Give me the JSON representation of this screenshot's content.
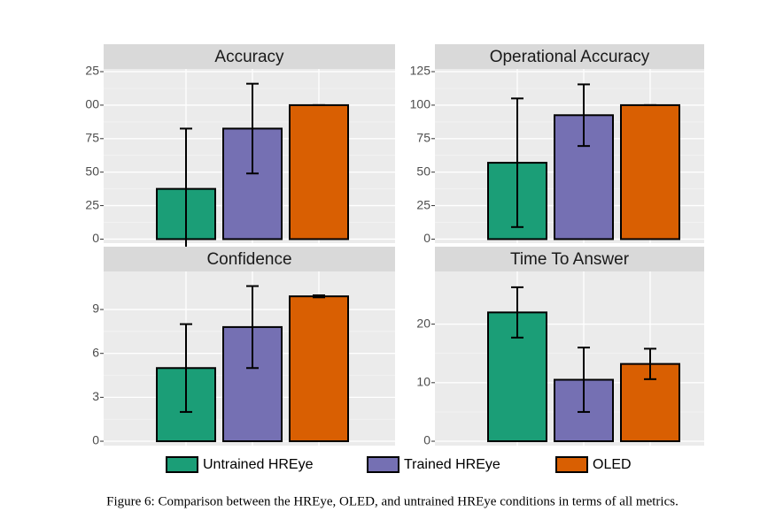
{
  "chart_data": [
    {
      "type": "bar",
      "title": "Accuracy",
      "values": [
        37.5,
        82.5,
        100
      ],
      "errors": [
        45,
        33.5,
        0
      ],
      "ylim": [
        -3,
        127
      ],
      "yticks": [
        0,
        25,
        50,
        75,
        {
          "value": 100,
          "label": "00"
        },
        {
          "value": 125,
          "label": "25"
        }
      ],
      "grid": true
    },
    {
      "type": "bar",
      "title": "Operational Accuracy",
      "values": [
        57,
        92.5,
        100
      ],
      "errors": [
        48,
        23,
        0
      ],
      "ylim": [
        -3,
        127
      ],
      "yticks": [
        0,
        25,
        50,
        75,
        100,
        125
      ],
      "grid": true
    },
    {
      "type": "bar",
      "title": "Confidence",
      "values": [
        5,
        7.8,
        9.9
      ],
      "errors": [
        3,
        2.8,
        0.07
      ],
      "ylim": [
        -0.3,
        11.6
      ],
      "yticks": [
        0,
        3,
        6,
        9
      ],
      "grid": true
    },
    {
      "type": "bar",
      "title": "Time To Answer",
      "values": [
        22,
        10.5,
        13.2
      ],
      "errors": [
        4.3,
        5.5,
        2.6
      ],
      "ylim": [
        -0.75,
        29
      ],
      "yticks": [
        0,
        10,
        20
      ],
      "grid": true
    }
  ],
  "legend": [
    {
      "name": "Untrained HREye",
      "color": "#1b9e77"
    },
    {
      "name": "Trained HREye",
      "color": "#7570b3"
    },
    {
      "name": "OLED",
      "color": "#d95f02"
    }
  ],
  "caption": "Figure 6: Comparison between the HREye, OLED, and untrained HREye conditions in terms of all metrics."
}
